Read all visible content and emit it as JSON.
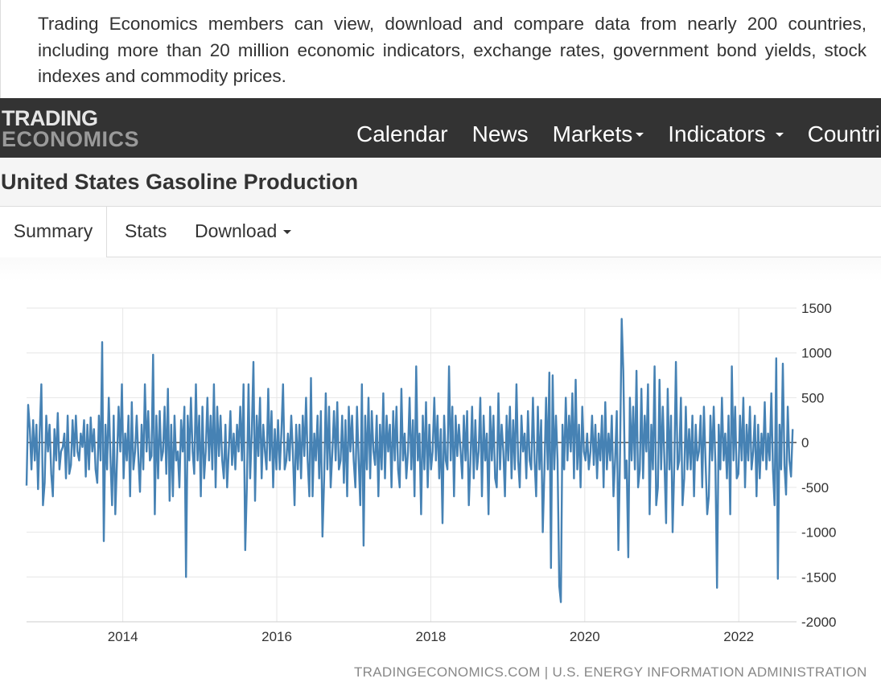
{
  "promo": {
    "text": "Trading Economics members can view, download and compare data from nearly 200 countries, including more than 20 million economic indicators, exchange rates, government bond yields, stock indexes and commodity prices."
  },
  "navbar": {
    "logo_line1": "TRADING",
    "logo_line2": "ECONOMICS",
    "items": [
      {
        "label": "Calendar",
        "dropdown": false
      },
      {
        "label": "News",
        "dropdown": false
      },
      {
        "label": "Markets",
        "dropdown": true
      },
      {
        "label": "Indicators",
        "dropdown": true
      },
      {
        "label": "Countries",
        "dropdown": true
      }
    ]
  },
  "page": {
    "title": "United States Gasoline Production"
  },
  "tabs": {
    "summary": "Summary",
    "stats": "Stats",
    "download": "Download"
  },
  "source": {
    "text": "TRADINGECONOMICS.COM | U.S. ENERGY INFORMATION ADMINISTRATION"
  },
  "colors": {
    "series": "#4682b4",
    "navbar": "#333333",
    "grid": "#e6e6e6"
  },
  "chart_data": {
    "type": "line",
    "title": "",
    "xlabel": "",
    "ylabel": "",
    "xlim": [
      2012.75,
      2022.75
    ],
    "ylim": [
      -2000,
      1500
    ],
    "y_ticks": [
      1500,
      1000,
      500,
      0,
      -500,
      -1000,
      -1500,
      -2000
    ],
    "x_ticks": [
      "2014",
      "2016",
      "2018",
      "2020",
      "2022"
    ],
    "grid": true,
    "zero_line": true,
    "y_axis_side": "right",
    "series": [
      {
        "x_start": 2012.75,
        "x_end": 2022.7,
        "values": [
          -480,
          420,
          150,
          -300,
          250,
          -200,
          200,
          -520,
          100,
          650,
          -700,
          -450,
          300,
          -100,
          200,
          -350,
          -600,
          150,
          -200,
          330,
          -300,
          -100,
          -50,
          100,
          -400,
          300,
          -350,
          -250,
          250,
          -150,
          300,
          -100,
          -200,
          100,
          -50,
          250,
          -380,
          200,
          -300,
          280,
          -100,
          150,
          -300,
          -450,
          300,
          -200,
          1120,
          -1100,
          200,
          -300,
          500,
          -150,
          -700,
          300,
          -800,
          -200,
          400,
          -100,
          650,
          -400,
          100,
          -200,
          300,
          -600,
          450,
          -300,
          -100,
          300,
          -150,
          -550,
          200,
          -300,
          650,
          -100,
          350,
          -200,
          -150,
          980,
          -800,
          300,
          -400,
          350,
          -200,
          -100,
          400,
          -350,
          600,
          -650,
          200,
          -600,
          300,
          -200,
          -100,
          -500,
          250,
          -100,
          400,
          -1500,
          300,
          -200,
          500,
          -100,
          -350,
          650,
          -200,
          300,
          -600,
          400,
          -400,
          -100,
          500,
          -200,
          300,
          -300,
          650,
          -500,
          400,
          -150,
          300,
          -200,
          -400,
          200,
          -500,
          -100,
          350,
          -250,
          100,
          -300,
          200,
          -100,
          400,
          -200,
          650,
          -1200,
          -500,
          650,
          -400,
          100,
          900,
          -650,
          300,
          -150,
          500,
          -400,
          200,
          -100,
          -300,
          600,
          -200,
          350,
          -500,
          150,
          -300,
          250,
          -300,
          100,
          650,
          -300,
          -200,
          100,
          -200,
          300,
          -100,
          -700,
          200,
          -300,
          200,
          -400,
          300,
          -150,
          500,
          -200,
          -600,
          720,
          -600,
          100,
          -200,
          300,
          -400,
          350,
          -1050,
          -400,
          550,
          -300,
          400,
          -500,
          -100,
          350,
          -200,
          450,
          -300,
          -200,
          300,
          -450,
          250,
          -600,
          400,
          -100,
          300,
          -200,
          -500,
          400,
          -200,
          -700,
          650,
          -1150,
          300,
          -300,
          500,
          -400,
          350,
          -100,
          -250,
          300,
          -600,
          200,
          -300,
          550,
          -400,
          300,
          -100,
          200,
          -500,
          350,
          -200,
          400,
          -300,
          -500,
          600,
          -200,
          100,
          -400,
          -100,
          500,
          -300,
          250,
          -600,
          850,
          -200,
          100,
          -800,
          300,
          -300,
          450,
          -500,
          200,
          -300,
          -100,
          500,
          -200,
          300,
          -400,
          150,
          -900,
          300,
          -200,
          -300,
          850,
          -200,
          400,
          -600,
          300,
          -150,
          200,
          -100,
          -400,
          300,
          -200,
          350,
          -700,
          -200,
          400,
          -400,
          250,
          -300,
          -100,
          500,
          -600,
          300,
          -200,
          100,
          -800,
          400,
          -200,
          300,
          -400,
          -500,
          550,
          -300,
          200,
          -100,
          -600,
          300,
          -200,
          400,
          -400,
          250,
          -300,
          650,
          -200,
          -500,
          300,
          -100,
          100,
          -400,
          350,
          -200,
          -300,
          500,
          -200,
          -600,
          400,
          -300,
          250,
          -1000,
          -300,
          500,
          -300,
          780,
          -1400,
          750,
          -300,
          300,
          -200,
          -1600,
          -1780,
          200,
          -300,
          500,
          -200,
          300,
          -100,
          550,
          -400,
          700,
          -300,
          200,
          -500,
          400,
          -100,
          -200,
          100,
          -300,
          -100,
          300,
          -250,
          200,
          -400,
          100,
          -200,
          300,
          -500,
          450,
          -300,
          100,
          -200,
          300,
          -600,
          -200,
          350,
          -1200,
          -100,
          1380,
          800,
          -400,
          -200,
          -1280,
          500,
          -200,
          400,
          -300,
          800,
          -500,
          -300,
          600,
          -400,
          300,
          -100,
          650,
          -800,
          200,
          -300,
          850,
          -700,
          -500,
          700,
          -300,
          400,
          -200,
          -900,
          600,
          -300,
          300,
          -1000,
          -250,
          900,
          -300,
          -200,
          500,
          -700,
          -400,
          400,
          -300,
          150,
          -300,
          300,
          -600,
          200,
          -200,
          -100,
          300,
          -500,
          400,
          -200,
          -800,
          -600,
          300,
          -200,
          400,
          -250,
          -1620,
          200,
          -300,
          500,
          -200,
          100,
          -400,
          300,
          -800,
          850,
          -200,
          400,
          -400,
          -350,
          300,
          -200,
          500,
          -500,
          200,
          -200,
          400,
          -300,
          -100,
          300,
          -600,
          200,
          -400,
          100,
          -200,
          450,
          -300,
          100,
          -200,
          550,
          -300,
          -700,
          940,
          -1520,
          200,
          -300,
          880,
          -250,
          -580,
          400,
          -200,
          -380,
          150
        ]
      }
    ]
  }
}
